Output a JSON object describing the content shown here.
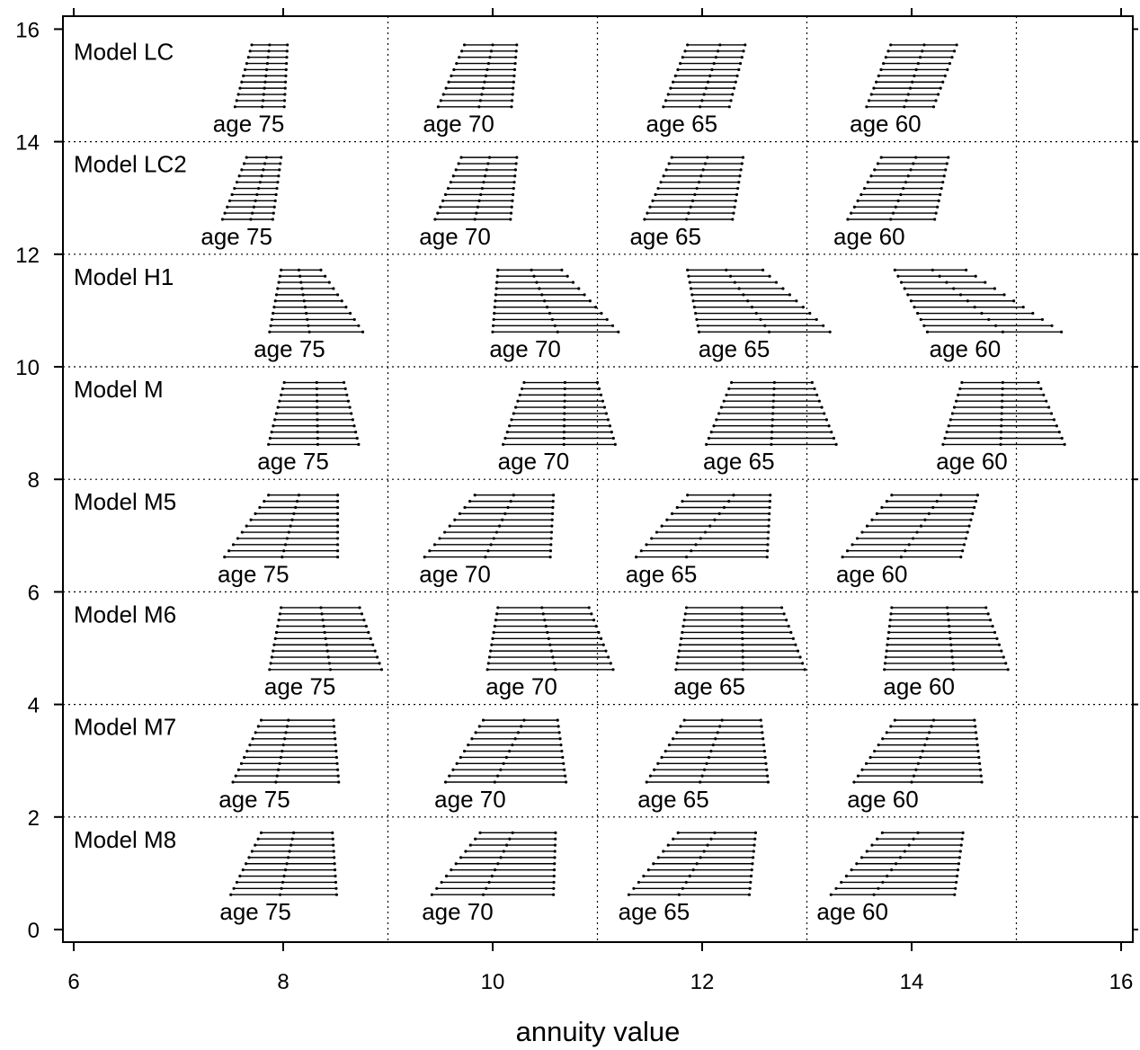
{
  "chart_data": {
    "type": "interval",
    "xlabel": "annuity value",
    "ylabel": "",
    "title": "",
    "xlim": [
      5.9,
      16.1
    ],
    "ylim": [
      -0.2,
      16.2
    ],
    "x_ticks": [
      "6",
      "8",
      "10",
      "12",
      "14",
      "16"
    ],
    "y_ticks": [
      "0",
      "2",
      "4",
      "6",
      "8",
      "10",
      "12",
      "14",
      "16"
    ],
    "grid": {
      "horizontal": [
        2,
        4,
        6,
        8,
        10,
        12,
        14
      ],
      "vertical": [
        9,
        11,
        13,
        15
      ],
      "style": "dotted"
    },
    "panels": [
      {
        "name": "Model LC",
        "y_base": 14,
        "groups": [
          {
            "age_label": "age 75",
            "top": [
              7.7,
              7.87,
              8.04
            ],
            "bottom": [
              7.54,
              7.8,
              8.01
            ]
          },
          {
            "age_label": "age 70",
            "top": [
              9.73,
              10.0,
              10.23
            ],
            "bottom": [
              9.48,
              9.87,
              10.18
            ]
          },
          {
            "age_label": "age 65",
            "top": [
              11.86,
              12.17,
              12.41
            ],
            "bottom": [
              11.63,
              11.98,
              12.26
            ]
          },
          {
            "age_label": "age 60",
            "top": [
              13.8,
              14.12,
              14.43
            ],
            "bottom": [
              13.57,
              13.93,
              14.21
            ]
          }
        ]
      },
      {
        "name": "Model LC2",
        "y_base": 12,
        "groups": [
          {
            "age_label": "age 75",
            "top": [
              7.65,
              7.84,
              7.98
            ],
            "bottom": [
              7.42,
              7.69,
              7.9
            ]
          },
          {
            "age_label": "age 70",
            "top": [
              9.7,
              9.97,
              10.23
            ],
            "bottom": [
              9.45,
              9.83,
              10.17
            ]
          },
          {
            "age_label": "age 65",
            "top": [
              11.71,
              12.05,
              12.39
            ],
            "bottom": [
              11.45,
              11.85,
              12.29
            ]
          },
          {
            "age_label": "age 60",
            "top": [
              13.71,
              14.04,
              14.35
            ],
            "bottom": [
              13.39,
              13.8,
              14.22
            ]
          }
        ]
      },
      {
        "name": "Model H1",
        "y_base": 10,
        "groups": [
          {
            "age_label": "age 75",
            "top": [
              7.98,
              8.15,
              8.36
            ],
            "bottom": [
              7.87,
              8.25,
              8.76
            ]
          },
          {
            "age_label": "age 70",
            "top": [
              10.05,
              10.37,
              10.66
            ],
            "bottom": [
              10.0,
              10.62,
              11.2
            ]
          },
          {
            "age_label": "age 65",
            "top": [
              11.86,
              12.23,
              12.58
            ],
            "bottom": [
              11.97,
              12.64,
              13.22
            ]
          },
          {
            "age_label": "age 60",
            "top": [
              13.84,
              14.2,
              14.52
            ],
            "bottom": [
              14.15,
              14.87,
              15.43
            ]
          }
        ]
      },
      {
        "name": "Model M",
        "y_base": 8,
        "groups": [
          {
            "age_label": "age 75",
            "top": [
              8.01,
              8.32,
              8.58
            ],
            "bottom": [
              7.86,
              8.33,
              8.72
            ]
          },
          {
            "age_label": "age 70",
            "top": [
              10.3,
              10.69,
              11.0
            ],
            "bottom": [
              10.1,
              10.68,
              11.17
            ]
          },
          {
            "age_label": "age 65",
            "top": [
              12.28,
              12.69,
              13.05
            ],
            "bottom": [
              12.04,
              12.66,
              13.28
            ]
          },
          {
            "age_label": "age 60",
            "top": [
              14.48,
              14.87,
              15.21
            ],
            "bottom": [
              14.3,
              14.85,
              15.46
            ]
          }
        ]
      },
      {
        "name": "Model M5",
        "y_base": 6,
        "groups": [
          {
            "age_label": "age 75",
            "top": [
              7.86,
              8.15,
              8.52
            ],
            "bottom": [
              7.44,
              7.99,
              8.52
            ]
          },
          {
            "age_label": "age 70",
            "top": [
              9.83,
              10.2,
              10.58
            ],
            "bottom": [
              9.35,
              9.93,
              10.55
            ]
          },
          {
            "age_label": "age 65",
            "top": [
              11.86,
              12.3,
              12.65
            ],
            "bottom": [
              11.37,
              11.85,
              12.62
            ]
          },
          {
            "age_label": "age 60",
            "top": [
              13.81,
              14.28,
              14.63
            ],
            "bottom": [
              13.34,
              13.9,
              14.47
            ]
          }
        ]
      },
      {
        "name": "Model M6",
        "y_base": 4,
        "groups": [
          {
            "age_label": "age 75",
            "top": [
              7.98,
              8.36,
              8.73
            ],
            "bottom": [
              7.87,
              8.45,
              8.94
            ]
          },
          {
            "age_label": "age 70",
            "top": [
              10.05,
              10.47,
              10.92
            ],
            "bottom": [
              9.95,
              10.6,
              11.15
            ]
          },
          {
            "age_label": "age 65",
            "top": [
              11.85,
              12.38,
              12.76
            ],
            "bottom": [
              11.75,
              12.39,
              12.98
            ]
          },
          {
            "age_label": "age 60",
            "top": [
              13.81,
              14.34,
              14.71
            ],
            "bottom": [
              13.74,
              14.4,
              14.92
            ]
          }
        ]
      },
      {
        "name": "Model M7",
        "y_base": 2,
        "groups": [
          {
            "age_label": "age 75",
            "top": [
              7.79,
              8.05,
              8.48
            ],
            "bottom": [
              7.52,
              7.93,
              8.53
            ]
          },
          {
            "age_label": "age 70",
            "top": [
              9.91,
              10.3,
              10.62
            ],
            "bottom": [
              9.55,
              10.02,
              10.7
            ]
          },
          {
            "age_label": "age 65",
            "top": [
              11.83,
              12.19,
              12.56
            ],
            "bottom": [
              11.47,
              11.98,
              12.63
            ]
          },
          {
            "age_label": "age 60",
            "top": [
              13.84,
              14.21,
              14.6
            ],
            "bottom": [
              13.45,
              14.0,
              14.67
            ]
          }
        ]
      },
      {
        "name": "Model M8",
        "y_base": 0,
        "groups": [
          {
            "age_label": "age 75",
            "top": [
              7.79,
              8.1,
              8.47
            ],
            "bottom": [
              7.5,
              7.97,
              8.51
            ]
          },
          {
            "age_label": "age 70",
            "top": [
              9.88,
              10.19,
              10.6
            ],
            "bottom": [
              9.42,
              9.91,
              10.58
            ]
          },
          {
            "age_label": "age 65",
            "top": [
              11.77,
              12.12,
              12.51
            ],
            "bottom": [
              11.3,
              11.78,
              12.45
            ]
          },
          {
            "age_label": "age 60",
            "top": [
              13.72,
              14.06,
              14.49
            ],
            "bottom": [
              13.23,
              13.64,
              14.41
            ]
          }
        ]
      }
    ]
  }
}
